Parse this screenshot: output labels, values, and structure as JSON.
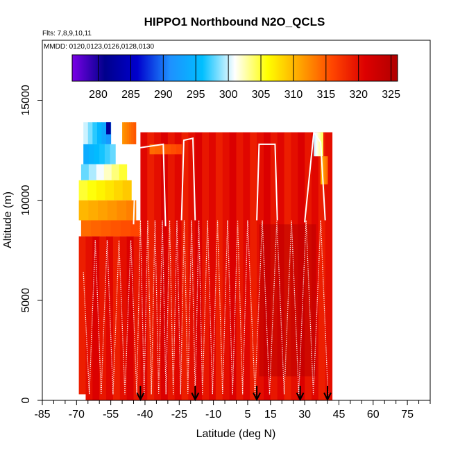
{
  "chart_data": {
    "type": "heatmap",
    "title": "HIPPO1 Northbound N2O_QCLS",
    "flights_note": "Flts: 7,8,9,10,11",
    "dates_note": "MMDD: 0120,0123,0126,0128,0130",
    "xlabel": "Latitude (deg N)",
    "ylabel": "Altitude (m)",
    "xlim": [
      -85,
      85
    ],
    "ylim": [
      0,
      18000
    ],
    "x_ticks_labeled": [
      -85,
      -70,
      -55,
      -40,
      -25,
      -10,
      5,
      15,
      30,
      45,
      60,
      75
    ],
    "y_ticks": [
      0,
      5000,
      10000,
      15000
    ],
    "colorbar": {
      "min": 276,
      "max": 326,
      "ticks": [
        280,
        285,
        290,
        295,
        300,
        305,
        310,
        315,
        320,
        325
      ],
      "colors": [
        "#7a00e6",
        "#00008b",
        "#0000cd",
        "#1e90ff",
        "#00bfff",
        "#ffffff",
        "#ffff00",
        "#ffa500",
        "#ff4500",
        "#dd0000",
        "#b00000"
      ]
    },
    "grid": false,
    "flight_arrows_lat": [
      -42,
      -18,
      9,
      28,
      40
    ],
    "background_value": 320,
    "strat_cells": [
      {
        "lat": [
          -67,
          -55
        ],
        "alt": [
          12800,
          13900
        ],
        "v": [
          300,
          292
        ]
      },
      {
        "lat": [
          -67,
          -53
        ],
        "alt": [
          11800,
          12800
        ],
        "v": [
          294,
          298
        ]
      },
      {
        "lat": [
          -68,
          -48
        ],
        "alt": [
          11000,
          11800
        ],
        "v": [
          298,
          305
        ]
      },
      {
        "lat": [
          -69,
          -46
        ],
        "alt": [
          10000,
          11000
        ],
        "v": [
          305,
          309
        ]
      },
      {
        "lat": [
          -69,
          -44
        ],
        "alt": [
          9000,
          10000
        ],
        "v": [
          310,
          313
        ]
      },
      {
        "lat": [
          -68,
          -42
        ],
        "alt": [
          8200,
          9000
        ],
        "v": [
          314,
          316
        ]
      },
      {
        "lat": [
          -50,
          -44
        ],
        "alt": [
          12800,
          13900
        ],
        "v": [
          312,
          315
        ]
      },
      {
        "lat": [
          -38,
          -24
        ],
        "alt": [
          12300,
          12800
        ],
        "v": [
          314,
          316
        ]
      },
      {
        "lat": [
          34,
          38
        ],
        "alt": [
          12200,
          13400
        ],
        "v": [
          300,
          304
        ]
      },
      {
        "lat": [
          37,
          40
        ],
        "alt": [
          10800,
          12200
        ],
        "v": [
          310,
          314
        ]
      }
    ]
  }
}
